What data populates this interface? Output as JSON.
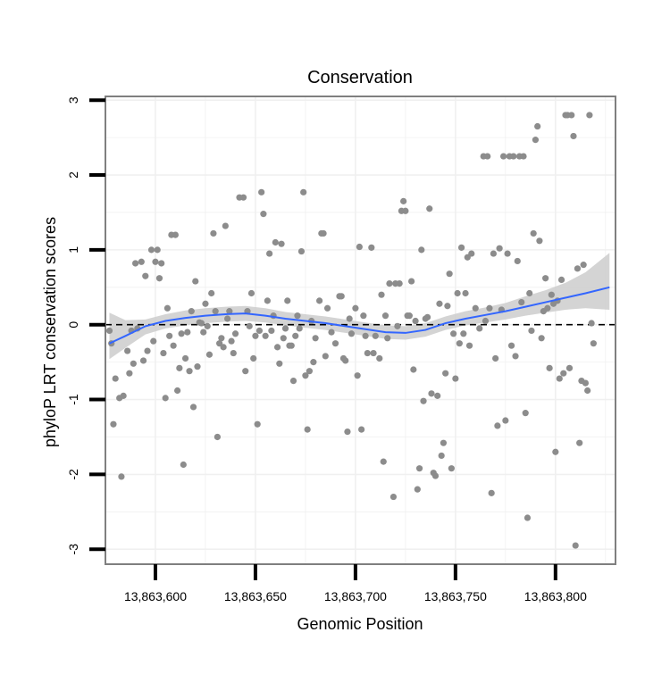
{
  "chart_data": {
    "type": "scatter",
    "title": "Conservation",
    "xlabel": "Genomic Position",
    "ylabel": "phyloP LRT conservation scores",
    "xlim": [
      13863575,
      13863830
    ],
    "ylim": [
      -3.2,
      3.05
    ],
    "x_ticks": [
      13863600,
      13863650,
      13863700,
      13863750,
      13863800
    ],
    "x_tick_labels": [
      "13,863,600",
      "13,863,650",
      "13,863,700",
      "13,863,750",
      "13,863,800"
    ],
    "y_ticks": [
      -3,
      -2,
      -1,
      0,
      1,
      2,
      3
    ],
    "y_tick_labels": [
      "-3",
      "-2",
      "-1",
      "0",
      "1",
      "2",
      "3"
    ],
    "grid": true,
    "reference_line": {
      "y": 0,
      "style": "dashed",
      "color": "#000000"
    },
    "colors": {
      "points": "#8c8c8c",
      "smooth_line": "#3366ff",
      "ribbon": "#cccccc",
      "panel_border": "#7f7f7f",
      "grid": "#f0f0f0"
    },
    "points": [
      [
        13863577,
        -0.08
      ],
      [
        13863578,
        -0.25
      ],
      [
        13863579,
        -1.33
      ],
      [
        13863580,
        -0.72
      ],
      [
        13863582,
        -0.98
      ],
      [
        13863583,
        -2.03
      ],
      [
        13863584,
        -0.95
      ],
      [
        13863586,
        -0.35
      ],
      [
        13863587,
        -0.65
      ],
      [
        13863588,
        -0.08
      ],
      [
        13863589,
        -0.52
      ],
      [
        13863590,
        0.82
      ],
      [
        13863591,
        -0.05
      ],
      [
        13863593,
        0.84
      ],
      [
        13863594,
        -0.48
      ],
      [
        13863595,
        0.65
      ],
      [
        13863596,
        -0.35
      ],
      [
        13863598,
        1.0
      ],
      [
        13863599,
        -0.22
      ],
      [
        13863600,
        0.84
      ],
      [
        13863601,
        1.0
      ],
      [
        13863602,
        0.62
      ],
      [
        13863603,
        0.82
      ],
      [
        13863604,
        -0.38
      ],
      [
        13863605,
        -0.98
      ],
      [
        13863606,
        0.22
      ],
      [
        13863607,
        -0.15
      ],
      [
        13863608,
        1.2
      ],
      [
        13863609,
        -0.28
      ],
      [
        13863610,
        1.2
      ],
      [
        13863611,
        -0.88
      ],
      [
        13863612,
        -0.58
      ],
      [
        13863613,
        -0.12
      ],
      [
        13863614,
        -1.87
      ],
      [
        13863615,
        -0.45
      ],
      [
        13863616,
        -0.1
      ],
      [
        13863617,
        -0.62
      ],
      [
        13863618,
        0.18
      ],
      [
        13863619,
        -1.1
      ],
      [
        13863620,
        0.58
      ],
      [
        13863621,
        -0.56
      ],
      [
        13863622,
        0.03
      ],
      [
        13863623,
        0.02
      ],
      [
        13863624,
        -0.1
      ],
      [
        13863625,
        0.28
      ],
      [
        13863626,
        -0.02
      ],
      [
        13863627,
        -0.4
      ],
      [
        13863628,
        0.42
      ],
      [
        13863629,
        1.22
      ],
      [
        13863630,
        0.18
      ],
      [
        13863631,
        -1.5
      ],
      [
        13863632,
        -0.25
      ],
      [
        13863633,
        -0.18
      ],
      [
        13863634,
        -0.3
      ],
      [
        13863635,
        1.32
      ],
      [
        13863636,
        0.08
      ],
      [
        13863637,
        0.18
      ],
      [
        13863638,
        -0.22
      ],
      [
        13863639,
        -0.38
      ],
      [
        13863640,
        -0.12
      ],
      [
        13863642,
        1.7
      ],
      [
        13863644,
        1.7
      ],
      [
        13863645,
        -0.62
      ],
      [
        13863646,
        0.18
      ],
      [
        13863647,
        -0.02
      ],
      [
        13863648,
        0.42
      ],
      [
        13863649,
        -0.45
      ],
      [
        13863650,
        -0.15
      ],
      [
        13863651,
        -1.33
      ],
      [
        13863652,
        -0.08
      ],
      [
        13863653,
        1.77
      ],
      [
        13863654,
        1.48
      ],
      [
        13863655,
        -0.15
      ],
      [
        13863656,
        0.32
      ],
      [
        13863657,
        0.95
      ],
      [
        13863658,
        -0.08
      ],
      [
        13863659,
        0.12
      ],
      [
        13863660,
        1.1
      ],
      [
        13863661,
        -0.3
      ],
      [
        13863662,
        -0.52
      ],
      [
        13863663,
        1.08
      ],
      [
        13863664,
        -0.18
      ],
      [
        13863665,
        -0.05
      ],
      [
        13863666,
        0.32
      ],
      [
        13863667,
        -0.28
      ],
      [
        13863668,
        -0.28
      ],
      [
        13863669,
        -0.75
      ],
      [
        13863670,
        -0.15
      ],
      [
        13863671,
        0.12
      ],
      [
        13863672,
        -0.05
      ],
      [
        13863673,
        0.98
      ],
      [
        13863674,
        1.77
      ],
      [
        13863675,
        -0.68
      ],
      [
        13863676,
        -1.4
      ],
      [
        13863677,
        -0.62
      ],
      [
        13863678,
        0.05
      ],
      [
        13863679,
        -0.5
      ],
      [
        13863680,
        -0.18
      ],
      [
        13863682,
        0.32
      ],
      [
        13863683,
        1.22
      ],
      [
        13863684,
        1.22
      ],
      [
        13863685,
        -0.42
      ],
      [
        13863686,
        0.22
      ],
      [
        13863688,
        -0.1
      ],
      [
        13863690,
        -0.25
      ],
      [
        13863692,
        0.38
      ],
      [
        13863693,
        0.38
      ],
      [
        13863694,
        -0.45
      ],
      [
        13863695,
        -0.48
      ],
      [
        13863696,
        -1.43
      ],
      [
        13863697,
        0.08
      ],
      [
        13863698,
        -0.12
      ],
      [
        13863700,
        0.22
      ],
      [
        13863701,
        -0.68
      ],
      [
        13863702,
        1.04
      ],
      [
        13863703,
        -1.4
      ],
      [
        13863704,
        0.12
      ],
      [
        13863705,
        -0.15
      ],
      [
        13863706,
        -0.38
      ],
      [
        13863708,
        1.03
      ],
      [
        13863709,
        -0.38
      ],
      [
        13863710,
        -0.15
      ],
      [
        13863712,
        -0.45
      ],
      [
        13863713,
        0.4
      ],
      [
        13863714,
        -1.83
      ],
      [
        13863715,
        0.12
      ],
      [
        13863716,
        -0.18
      ],
      [
        13863717,
        0.55
      ],
      [
        13863719,
        -2.3
      ],
      [
        13863720,
        0.55
      ],
      [
        13863721,
        -0.02
      ],
      [
        13863722,
        0.55
      ],
      [
        13863723,
        1.52
      ],
      [
        13863724,
        1.65
      ],
      [
        13863725,
        1.52
      ],
      [
        13863726,
        0.12
      ],
      [
        13863727,
        0.12
      ],
      [
        13863728,
        0.58
      ],
      [
        13863729,
        -0.6
      ],
      [
        13863730,
        0.05
      ],
      [
        13863731,
        -2.2
      ],
      [
        13863732,
        -1.92
      ],
      [
        13863733,
        1.0
      ],
      [
        13863734,
        -1.02
      ],
      [
        13863735,
        0.08
      ],
      [
        13863736,
        0.1
      ],
      [
        13863737,
        1.55
      ],
      [
        13863738,
        -0.92
      ],
      [
        13863739,
        -1.98
      ],
      [
        13863740,
        -2.02
      ],
      [
        13863741,
        -0.95
      ],
      [
        13863742,
        0.28
      ],
      [
        13863743,
        -1.75
      ],
      [
        13863744,
        -1.58
      ],
      [
        13863745,
        -0.65
      ],
      [
        13863746,
        0.25
      ],
      [
        13863747,
        0.68
      ],
      [
        13863748,
        -1.92
      ],
      [
        13863749,
        -0.12
      ],
      [
        13863750,
        -0.72
      ],
      [
        13863751,
        0.42
      ],
      [
        13863752,
        -0.25
      ],
      [
        13863753,
        1.03
      ],
      [
        13863754,
        -0.12
      ],
      [
        13863755,
        0.42
      ],
      [
        13863756,
        0.9
      ],
      [
        13863757,
        -0.28
      ],
      [
        13863758,
        0.95
      ],
      [
        13863760,
        0.22
      ],
      [
        13863762,
        -0.05
      ],
      [
        13863764,
        2.25
      ],
      [
        13863765,
        0.05
      ],
      [
        13863766,
        2.25
      ],
      [
        13863767,
        0.22
      ],
      [
        13863768,
        -2.25
      ],
      [
        13863769,
        0.95
      ],
      [
        13863770,
        -0.45
      ],
      [
        13863771,
        -1.35
      ],
      [
        13863772,
        1.02
      ],
      [
        13863773,
        0.2
      ],
      [
        13863774,
        2.25
      ],
      [
        13863775,
        -1.28
      ],
      [
        13863776,
        0.95
      ],
      [
        13863777,
        2.25
      ],
      [
        13863778,
        -0.28
      ],
      [
        13863779,
        2.25
      ],
      [
        13863780,
        -0.42
      ],
      [
        13863781,
        0.85
      ],
      [
        13863782,
        2.25
      ],
      [
        13863783,
        0.3
      ],
      [
        13863784,
        2.25
      ],
      [
        13863785,
        -1.18
      ],
      [
        13863786,
        -2.58
      ],
      [
        13863787,
        0.42
      ],
      [
        13863788,
        -0.08
      ],
      [
        13863789,
        1.22
      ],
      [
        13863790,
        2.47
      ],
      [
        13863791,
        2.65
      ],
      [
        13863792,
        1.12
      ],
      [
        13863793,
        -0.18
      ],
      [
        13863794,
        0.18
      ],
      [
        13863795,
        0.62
      ],
      [
        13863796,
        0.22
      ],
      [
        13863797,
        -0.58
      ],
      [
        13863798,
        0.4
      ],
      [
        13863799,
        0.28
      ],
      [
        13863800,
        -1.7
      ],
      [
        13863801,
        0.32
      ],
      [
        13863802,
        -0.72
      ],
      [
        13863803,
        0.6
      ],
      [
        13863804,
        -0.65
      ],
      [
        13863805,
        2.8
      ],
      [
        13863806,
        2.8
      ],
      [
        13863807,
        -0.58
      ],
      [
        13863808,
        2.8
      ],
      [
        13863809,
        2.52
      ],
      [
        13863810,
        -2.95
      ],
      [
        13863811,
        0.75
      ],
      [
        13863812,
        -1.58
      ],
      [
        13863813,
        -0.75
      ],
      [
        13863814,
        0.8
      ],
      [
        13863815,
        -0.78
      ],
      [
        13863816,
        -0.88
      ],
      [
        13863817,
        2.8
      ],
      [
        13863818,
        0.02
      ],
      [
        13863819,
        -0.25
      ]
    ],
    "smooth": {
      "x": [
        13863577,
        13863585,
        13863595,
        13863605,
        13863615,
        13863625,
        13863635,
        13863645,
        13863655,
        13863665,
        13863675,
        13863685,
        13863695,
        13863705,
        13863715,
        13863725,
        13863735,
        13863745,
        13863755,
        13863765,
        13863775,
        13863785,
        13863795,
        13863805,
        13863815,
        13863827
      ],
      "fit": [
        -0.25,
        -0.15,
        -0.02,
        0.05,
        0.09,
        0.12,
        0.14,
        0.15,
        0.12,
        0.08,
        0.05,
        0.02,
        -0.02,
        -0.06,
        -0.1,
        -0.11,
        -0.07,
        0.02,
        0.08,
        0.13,
        0.18,
        0.24,
        0.3,
        0.36,
        0.42,
        0.5
      ],
      "lower": [
        -0.46,
        -0.31,
        -0.13,
        -0.05,
        -0.01,
        0.02,
        0.04,
        0.05,
        0.03,
        -0.01,
        -0.04,
        -0.07,
        -0.11,
        -0.15,
        -0.19,
        -0.2,
        -0.16,
        -0.07,
        -0.01,
        0.03,
        0.07,
        0.12,
        0.16,
        0.2,
        0.22,
        0.2
      ],
      "upper": [
        0.16,
        0.06,
        0.07,
        0.14,
        0.19,
        0.22,
        0.24,
        0.25,
        0.22,
        0.17,
        0.14,
        0.11,
        0.07,
        0.03,
        -0.01,
        -0.02,
        0.02,
        0.11,
        0.18,
        0.23,
        0.29,
        0.38,
        0.46,
        0.56,
        0.7,
        0.96
      ]
    }
  }
}
